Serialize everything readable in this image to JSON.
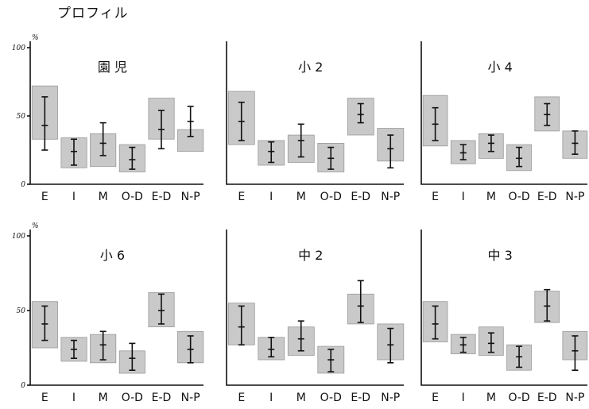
{
  "page_title": "プロフィル",
  "chart_data": [
    {
      "type": "box",
      "title": "園 児",
      "categories": [
        "E",
        "I",
        "M",
        "O-D",
        "E-D",
        "N-P"
      ],
      "ylim": [
        0,
        100
      ],
      "yticks": [
        {
          "label": "100",
          "value": 100
        },
        {
          "label": "50",
          "value": 50
        },
        {
          "label": "0",
          "value": 0
        }
      ],
      "yunit": "%",
      "series": [
        {
          "values": [
            {
              "box": [
                33,
                72
              ],
              "whisker": [
                25,
                64
              ],
              "point": 43
            },
            {
              "box": [
                12,
                34
              ],
              "whisker": [
                14,
                33
              ],
              "point": 24
            },
            {
              "box": [
                13,
                37
              ],
              "whisker": [
                21,
                45
              ],
              "point": 30
            },
            {
              "box": [
                9,
                29
              ],
              "whisker": [
                11,
                27
              ],
              "point": 18
            },
            {
              "box": [
                33,
                63
              ],
              "whisker": [
                26,
                54
              ],
              "point": 40
            },
            {
              "box": [
                24,
                40
              ],
              "whisker": [
                35,
                57
              ],
              "point": 46
            }
          ]
        }
      ]
    },
    {
      "type": "box",
      "title": "小 2",
      "categories": [
        "E",
        "I",
        "M",
        "O-D",
        "E-D",
        "N-P"
      ],
      "ylim": [
        0,
        100
      ],
      "yticks": [],
      "yunit": "",
      "series": [
        {
          "values": [
            {
              "box": [
                29,
                68
              ],
              "whisker": [
                32,
                60
              ],
              "point": 46
            },
            {
              "box": [
                14,
                32
              ],
              "whisker": [
                16,
                31
              ],
              "point": 24
            },
            {
              "box": [
                16,
                36
              ],
              "whisker": [
                20,
                44
              ],
              "point": 32
            },
            {
              "box": [
                9,
                30
              ],
              "whisker": [
                11,
                27
              ],
              "point": 19
            },
            {
              "box": [
                36,
                63
              ],
              "whisker": [
                45,
                59
              ],
              "point": 51
            },
            {
              "box": [
                17,
                41
              ],
              "whisker": [
                12,
                36
              ],
              "point": 26
            }
          ]
        }
      ]
    },
    {
      "type": "box",
      "title": "小 4",
      "categories": [
        "E",
        "I",
        "M",
        "O-D",
        "E-D",
        "N-P"
      ],
      "ylim": [
        0,
        100
      ],
      "yticks": [],
      "yunit": "",
      "series": [
        {
          "values": [
            {
              "box": [
                28,
                65
              ],
              "whisker": [
                32,
                56
              ],
              "point": 44
            },
            {
              "box": [
                15,
                32
              ],
              "whisker": [
                18,
                29
              ],
              "point": 23
            },
            {
              "box": [
                19,
                37
              ],
              "whisker": [
                24,
                36
              ],
              "point": 30
            },
            {
              "box": [
                10,
                29
              ],
              "whisker": [
                13,
                27
              ],
              "point": 19
            },
            {
              "box": [
                39,
                64
              ],
              "whisker": [
                43,
                59
              ],
              "point": 51
            },
            {
              "box": [
                19,
                39
              ],
              "whisker": [
                22,
                39
              ],
              "point": 30
            }
          ]
        }
      ]
    },
    {
      "type": "box",
      "title": "小 6",
      "categories": [
        "E",
        "I",
        "M",
        "O-D",
        "E-D",
        "N-P"
      ],
      "ylim": [
        0,
        100
      ],
      "yticks": [
        {
          "label": "100",
          "value": 100
        },
        {
          "label": "50",
          "value": 50
        },
        {
          "label": "0",
          "value": 0
        }
      ],
      "yunit": "%",
      "series": [
        {
          "values": [
            {
              "box": [
                25,
                56
              ],
              "whisker": [
                30,
                53
              ],
              "point": 41
            },
            {
              "box": [
                16,
                32
              ],
              "whisker": [
                18,
                30
              ],
              "point": 24
            },
            {
              "box": [
                15,
                34
              ],
              "whisker": [
                17,
                36
              ],
              "point": 27
            },
            {
              "box": [
                8,
                23
              ],
              "whisker": [
                10,
                28
              ],
              "point": 18
            },
            {
              "box": [
                39,
                62
              ],
              "whisker": [
                41,
                61
              ],
              "point": 50
            },
            {
              "box": [
                15,
                36
              ],
              "whisker": [
                15,
                33
              ],
              "point": 24
            }
          ]
        }
      ]
    },
    {
      "type": "box",
      "title": "中 2",
      "categories": [
        "E",
        "I",
        "M",
        "O-D",
        "E-D",
        "N-P"
      ],
      "ylim": [
        0,
        100
      ],
      "yticks": [],
      "yunit": "",
      "series": [
        {
          "values": [
            {
              "box": [
                27,
                55
              ],
              "whisker": [
                27,
                53
              ],
              "point": 39
            },
            {
              "box": [
                17,
                32
              ],
              "whisker": [
                19,
                32
              ],
              "point": 24
            },
            {
              "box": [
                20,
                39
              ],
              "whisker": [
                23,
                43
              ],
              "point": 31
            },
            {
              "box": [
                8,
                26
              ],
              "whisker": [
                9,
                24
              ],
              "point": 17
            },
            {
              "box": [
                41,
                61
              ],
              "whisker": [
                42,
                70
              ],
              "point": 53
            },
            {
              "box": [
                17,
                41
              ],
              "whisker": [
                15,
                38
              ],
              "point": 27
            }
          ]
        }
      ]
    },
    {
      "type": "box",
      "title": "中 3",
      "categories": [
        "E",
        "I",
        "M",
        "O-D",
        "E-D",
        "N-P"
      ],
      "ylim": [
        0,
        100
      ],
      "yticks": [],
      "yunit": "",
      "series": [
        {
          "values": [
            {
              "box": [
                29,
                56
              ],
              "whisker": [
                31,
                53
              ],
              "point": 41
            },
            {
              "box": [
                21,
                34
              ],
              "whisker": [
                22,
                32
              ],
              "point": 27
            },
            {
              "box": [
                20,
                39
              ],
              "whisker": [
                22,
                35
              ],
              "point": 28
            },
            {
              "box": [
                10,
                27
              ],
              "whisker": [
                12,
                26
              ],
              "point": 19
            },
            {
              "box": [
                42,
                63
              ],
              "whisker": [
                43,
                64
              ],
              "point": 53
            },
            {
              "box": [
                17,
                36
              ],
              "whisker": [
                10,
                33
              ],
              "point": 23
            }
          ]
        }
      ]
    }
  ]
}
